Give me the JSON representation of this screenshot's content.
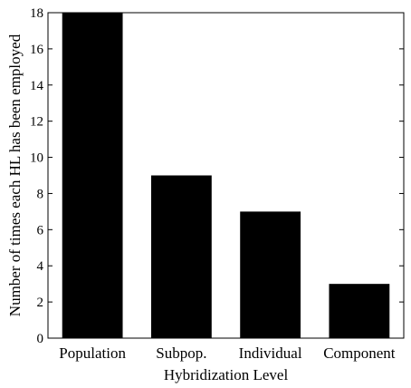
{
  "chart_data": {
    "type": "bar",
    "categories": [
      "Population",
      "Subpop.",
      "Individual",
      "Component"
    ],
    "values": [
      18,
      9,
      7,
      3
    ],
    "title": "",
    "xlabel": "Hybridization Level",
    "ylabel": "Number of times each HL has been employed",
    "ylim": [
      0,
      18
    ],
    "yticks": [
      0,
      2,
      4,
      6,
      8,
      10,
      12,
      14,
      16,
      18
    ],
    "bar_color": "#000000",
    "grid": false
  }
}
